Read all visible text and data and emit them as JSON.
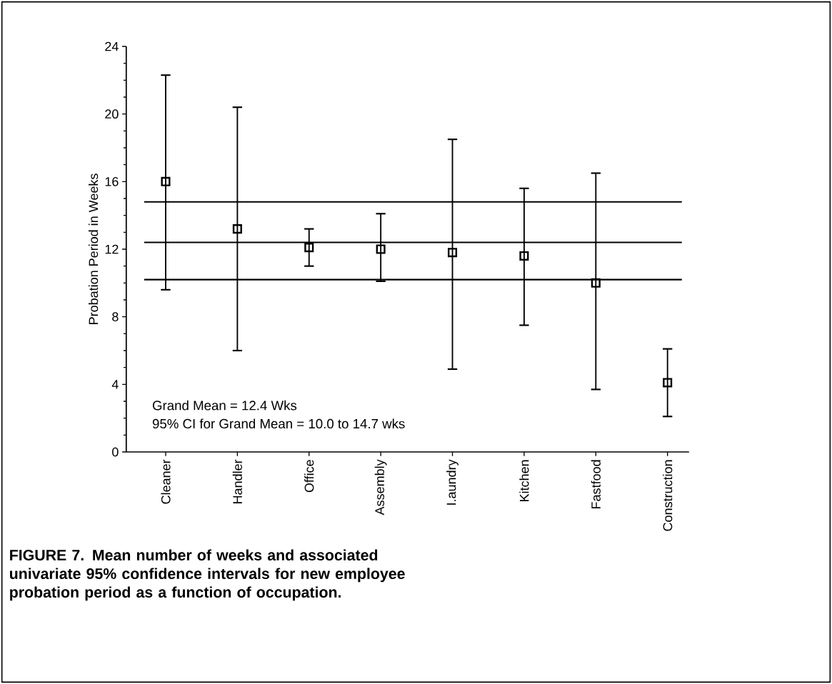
{
  "chart_data": {
    "type": "scatter",
    "title": "FIGURE 7. Mean number of weeks and associated univariate 95% confidence intervals for new employee probation period as a function of occupation.",
    "ylabel": "Probation Period in Weeks",
    "categories": [
      "Cleaner",
      "Handler",
      "Office",
      "Assembly",
      "I.aundry",
      "Kitchen",
      "Fastfood",
      "Construction"
    ],
    "series": [
      {
        "color": "#000000",
        "values": [
          16.0,
          13.2,
          12.1,
          12.0,
          11.8,
          11.6,
          10.0,
          4.1
        ],
        "errors": [
          [
            9.6,
            22.3
          ],
          [
            6.0,
            20.4
          ],
          [
            11.0,
            13.2
          ],
          [
            10.1,
            14.1
          ],
          [
            4.9,
            18.5
          ],
          [
            7.5,
            15.6
          ],
          [
            3.7,
            16.5
          ],
          [
            2.1,
            6.1
          ]
        ]
      }
    ],
    "ylim": [
      0,
      24
    ],
    "yticks": [
      0,
      4,
      8,
      12,
      16,
      20,
      24
    ],
    "marker": "square",
    "ref_lines": [
      {
        "axis": "y",
        "value": 14.8
      },
      {
        "axis": "y",
        "value": 12.4
      },
      {
        "axis": "y",
        "value": 10.2
      }
    ],
    "annotations": [
      "Grand Mean = 12.4 Wks",
      "95% CI for Grand Mean = 10.0 to 14.7 wks"
    ]
  }
}
